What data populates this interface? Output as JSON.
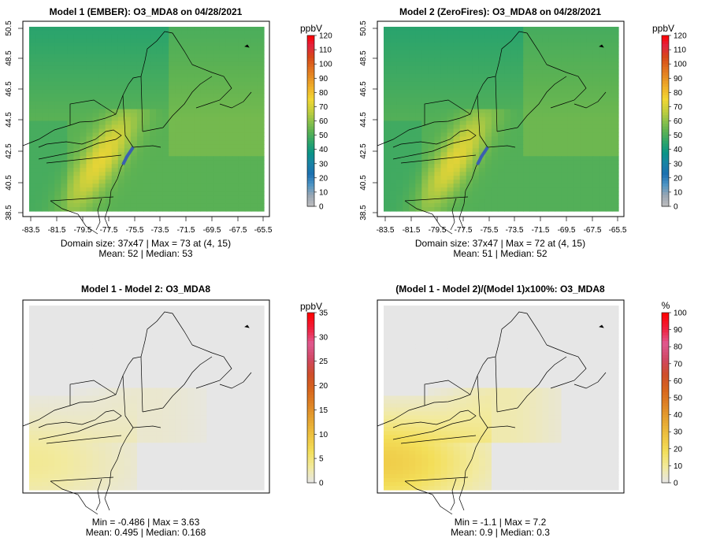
{
  "colors": {
    "frame": "#000000",
    "background_field": "#e6e6e6",
    "absolute_scale": [
      "#bebebe",
      "#9aa6b3",
      "#4f95c4",
      "#1c70b1",
      "#1a83a6",
      "#0a9486",
      "#2ea56a",
      "#5cb253",
      "#8fc24a",
      "#c8cf3c",
      "#f1d634",
      "#f0b42a",
      "#e79124",
      "#df6d1f",
      "#d74719",
      "#e12440",
      "#ff0000"
    ],
    "difference_scale": [
      "#e6e6e6",
      "#f2ea9e",
      "#f3df5a",
      "#eec441",
      "#e6a632",
      "#de8526",
      "#d7661d",
      "#cf4e2a",
      "#d04864",
      "#e05a90",
      "#f01d3a",
      "#ff0000"
    ]
  },
  "chart_data": [
    {
      "type": "heatmap",
      "title": "Model 1 (EMBER): O3_MDA8 on 04/28/2021",
      "colorbar": {
        "unit": "ppbV",
        "range": [
          0,
          120
        ],
        "ticks": [
          "0",
          "10",
          "20",
          "30",
          "40",
          "50",
          "60",
          "70",
          "80",
          "90",
          "100",
          "110",
          "120"
        ]
      },
      "x_ticks": [
        "-83.5",
        "-81.5",
        "-79.5",
        "-77.5",
        "-75.5",
        "-73.5",
        "-71.5",
        "-69.5",
        "-67.5",
        "-65.5"
      ],
      "y_ticks": [
        "38.5",
        "40.5",
        "42.5",
        "44.5",
        "46.5",
        "48.5",
        "50.5"
      ],
      "xlim": [
        -83.5,
        -65.5
      ],
      "ylim": [
        38.5,
        50.5
      ],
      "field": {
        "base": 52,
        "max": 73,
        "north_min": 44
      },
      "stats_line1": "Domain size: 37x47 | Max = 73 at (4, 15)",
      "stats_line2": "Mean: 52 |  Median: 53"
    },
    {
      "type": "heatmap",
      "title": "Model 2 (ZeroFires): O3_MDA8 on 04/28/2021",
      "colorbar": {
        "unit": "ppbV",
        "range": [
          0,
          120
        ],
        "ticks": [
          "0",
          "10",
          "20",
          "30",
          "40",
          "50",
          "60",
          "70",
          "80",
          "90",
          "100",
          "110",
          "120"
        ]
      },
      "x_ticks": [
        "-83.5",
        "-81.5",
        "-79.5",
        "-77.5",
        "-75.5",
        "-73.5",
        "-71.5",
        "-69.5",
        "-67.5",
        "-65.5"
      ],
      "y_ticks": [
        "38.5",
        "40.5",
        "42.5",
        "44.5",
        "46.5",
        "48.5",
        "50.5"
      ],
      "xlim": [
        -83.5,
        -65.5
      ],
      "ylim": [
        38.5,
        50.5
      ],
      "field": {
        "base": 51,
        "max": 72,
        "north_min": 44
      },
      "stats_line1": "Domain size: 37x47 | Max = 72 at (4, 15)",
      "stats_line2": "Mean: 51 |  Median: 52"
    },
    {
      "type": "heatmap",
      "title": "Model 1 - Model 2: O3_MDA8",
      "colorbar": {
        "unit": "ppbV",
        "range": [
          0,
          35
        ],
        "ticks": [
          "0",
          "5",
          "10",
          "15",
          "20",
          "25",
          "30",
          "35"
        ]
      },
      "xlim": [
        -83.5,
        -65.5
      ],
      "ylim": [
        38.5,
        50.5
      ],
      "field": {
        "min": -0.486,
        "max": 3.63
      },
      "stats_line1": "Min = -0.486 | Max = 3.63",
      "stats_line2": "Mean: 0.495 |  Median: 0.168"
    },
    {
      "type": "heatmap",
      "title": "(Model 1 - Model 2)/(Model 1)x100%: O3_MDA8",
      "colorbar": {
        "unit": "%",
        "range": [
          0,
          100
        ],
        "ticks": [
          "0",
          "10",
          "20",
          "30",
          "40",
          "50",
          "60",
          "70",
          "80",
          "90",
          "100"
        ]
      },
      "xlim": [
        -83.5,
        -65.5
      ],
      "ylim": [
        38.5,
        50.5
      ],
      "field": {
        "min": -1.1,
        "max": 7.2
      },
      "stats_line1": "Min = -1.1 | Max = 7.2",
      "stats_line2": "Mean: 0.9 |  Median: 0.3"
    }
  ]
}
